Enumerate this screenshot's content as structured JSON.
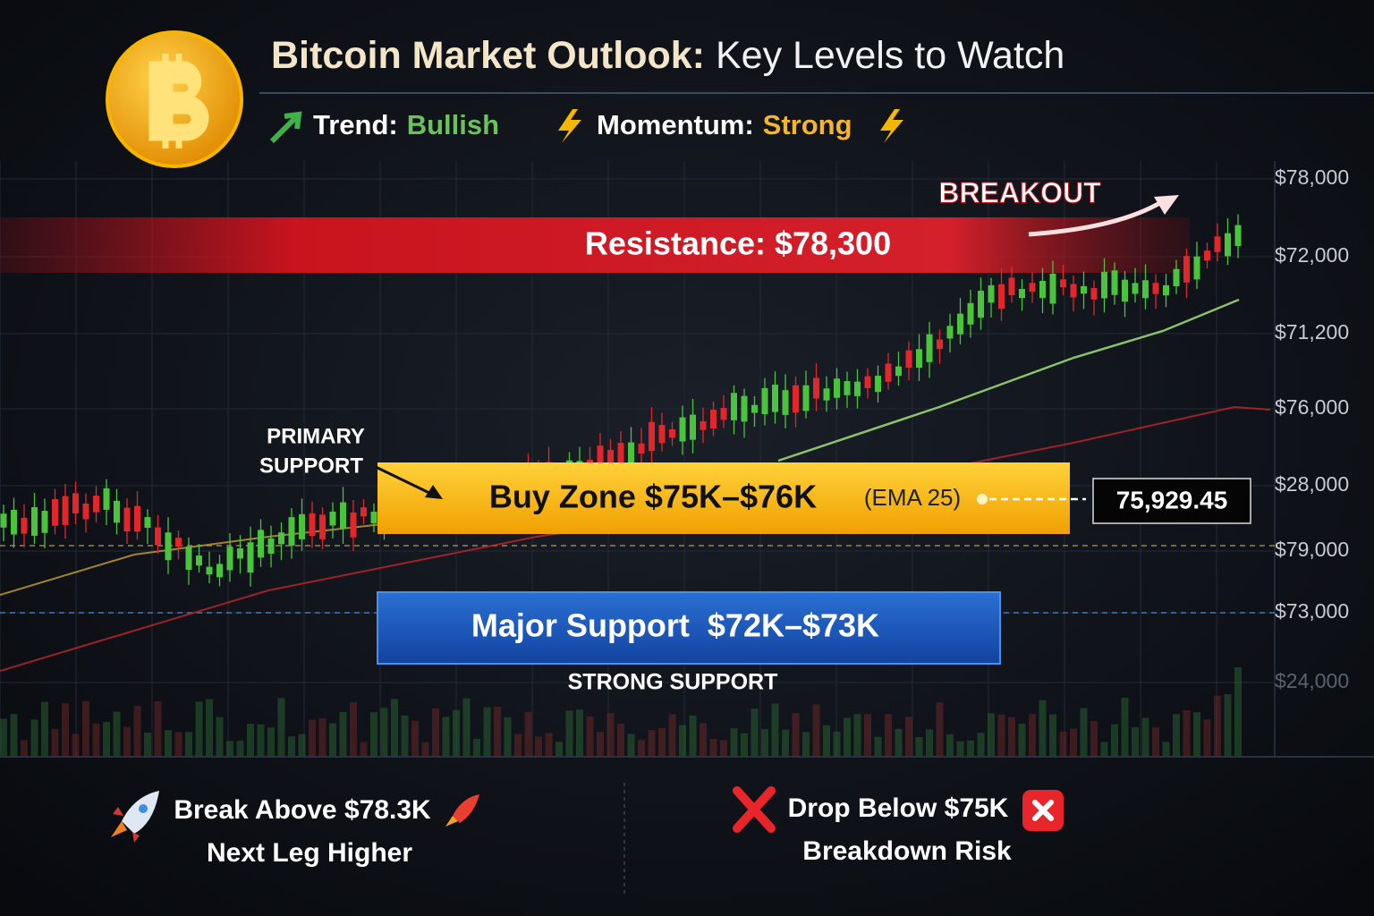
{
  "header": {
    "title_bold": "Bitcoin Market Outlook:",
    "title_rest": "Key Levels to Watch",
    "trend_label": "Trend:",
    "trend_value": "Bullish",
    "momentum_label": "Momentum:",
    "momentum_value": "Strong"
  },
  "levels": {
    "breakout": "BREAKOUT",
    "resistance": "Resistance: $78,300",
    "primary_support": [
      "PRIMARY",
      "SUPPORT"
    ],
    "buy_zone": "Buy Zone $75K–$76K",
    "buy_zone_note": "(EMA 25)",
    "price_tag": "75,929.45",
    "major_support": "Major Support  $72K–$73K",
    "strong_support": "STRONG SUPPORT"
  },
  "axis_labels": [
    "$78,000",
    "$72,000",
    "$71,200",
    "$76,000",
    "$28,000",
    "$79,000",
    "$73,000",
    "$24,000"
  ],
  "footer": {
    "left": [
      "Break Above $78.3K",
      "Next Leg Higher"
    ],
    "right": [
      "Drop Below $75K",
      "Breakdown Risk"
    ]
  }
}
